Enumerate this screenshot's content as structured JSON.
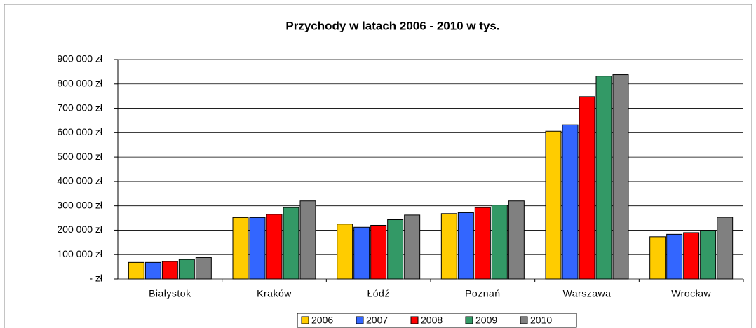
{
  "chart_data": {
    "type": "bar",
    "title": "Przychody w latach 2006 - 2010 w tys.",
    "categories": [
      "Białystok",
      "Kraków",
      "Łódź",
      "Poznań",
      "Warszawa",
      "Wrocław"
    ],
    "series": [
      {
        "name": "2006",
        "color": "#ffcc00",
        "values": [
          68000,
          252000,
          225000,
          268000,
          606000,
          173000
        ]
      },
      {
        "name": "2007",
        "color": "#3366ff",
        "values": [
          68000,
          252000,
          212000,
          272000,
          632000,
          183000
        ]
      },
      {
        "name": "2008",
        "color": "#ff0000",
        "values": [
          72000,
          265000,
          220000,
          293000,
          748000,
          190000
        ]
      },
      {
        "name": "2009",
        "color": "#339966",
        "values": [
          80000,
          293000,
          243000,
          303000,
          832000,
          198000
        ]
      },
      {
        "name": "2010",
        "color": "#808080",
        "values": [
          88000,
          320000,
          262000,
          320000,
          838000,
          253000
        ]
      }
    ],
    "ylim": [
      0,
      900000
    ],
    "yticks": [
      {
        "value": 0,
        "label": "- zł"
      },
      {
        "value": 100000,
        "label": "100 000 zł"
      },
      {
        "value": 200000,
        "label": "200 000 zł"
      },
      {
        "value": 300000,
        "label": "300 000 zł"
      },
      {
        "value": 400000,
        "label": "400 000 zł"
      },
      {
        "value": 500000,
        "label": "500 000 zł"
      },
      {
        "value": 600000,
        "label": "600 000 zł"
      },
      {
        "value": 700000,
        "label": "700 000 zł"
      },
      {
        "value": 800000,
        "label": "800 000 zł"
      },
      {
        "value": 900000,
        "label": "900 000 zł"
      }
    ],
    "grid": true,
    "legend": "bottom"
  }
}
